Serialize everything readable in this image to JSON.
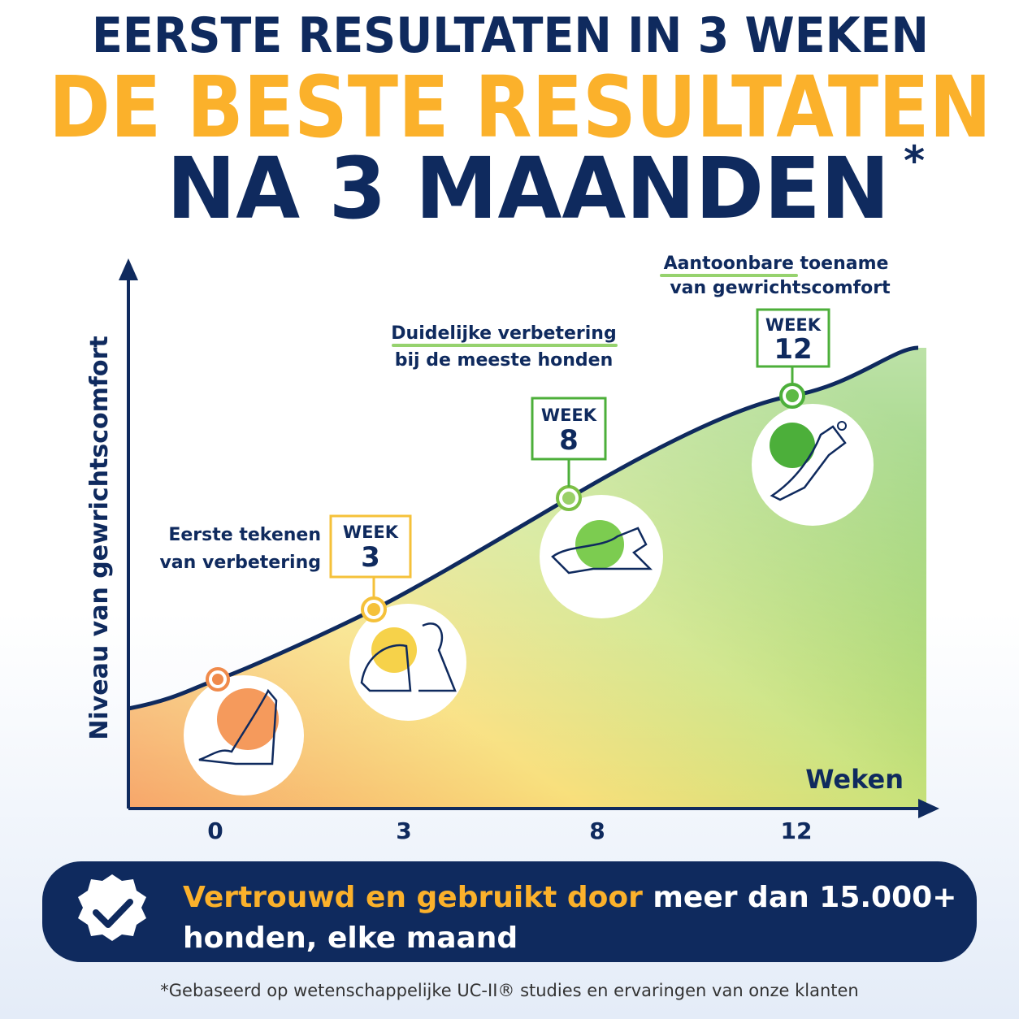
{
  "header": {
    "line1": "EERSTE RESULTATEN IN 3 WEKEN",
    "line2": "DE BESTE RESULTATEN",
    "line3": "NA 3 MAANDEN",
    "asterisk": "*"
  },
  "chart": {
    "y_axis_label": "Niveau van gewrichtscomfort",
    "x_axis_label": "Weken",
    "x_ticks": [
      "0",
      "3",
      "8",
      "12"
    ],
    "milestones": [
      {
        "week_label": "WEEK",
        "week": "3",
        "caption": [
          "Eerste tekenen",
          "van verbetering"
        ]
      },
      {
        "week_label": "WEEK",
        "week": "8",
        "caption": [
          "Duidelijke verbetering",
          "bij de meeste honden"
        ]
      },
      {
        "week_label": "WEEK",
        "week": "12",
        "caption": [
          "Aantoonbare toename",
          "van gewrichtscomfort"
        ]
      }
    ]
  },
  "banner": {
    "highlight": "Vertrouwd en gebruikt door",
    "rest": "meer dan 15.000+",
    "line2": "honden, elke maand"
  },
  "footnote": "*Gebaseerd op wetenschappelijke UC-II® studies en ervaringen van onze klanten"
}
